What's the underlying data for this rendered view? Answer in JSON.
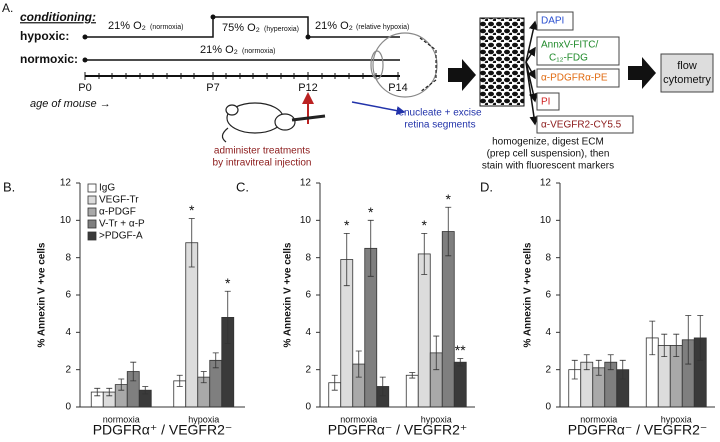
{
  "panel_a": {
    "label": "A.",
    "heading": "conditioning:",
    "rows": [
      "hypoxic:",
      "normoxic:"
    ],
    "phases": [
      {
        "o2": "21% O₂",
        "note": "(normoxia)"
      },
      {
        "o2": "75% O₂",
        "note": "(hyperoxia)"
      },
      {
        "o2": "21% O₂",
        "note": "(relative hypoxia)"
      },
      {
        "o2": "21% O₂",
        "note": "(normoxia)"
      }
    ],
    "days": [
      "P0",
      "P7",
      "P12",
      "P14"
    ],
    "age": "age of mouse →",
    "injection": [
      "administer treatments",
      "by intravitreal injection"
    ],
    "enucleate": [
      "enucleate + excise",
      "retina segments"
    ],
    "markers": [
      "DAPI",
      "AnnxV-FITC/",
      "C₁₂-FDG",
      "α-PDGFRα-PE",
      "PI",
      "α-VEGFR2-CY5.5"
    ],
    "processing": [
      "homogenize, digest ECM",
      "(prep cell suspension), then",
      "stain with fluorescent markers"
    ],
    "output": [
      "flow",
      "cytometry"
    ]
  },
  "chart_data": [
    {
      "type": "bar",
      "panel": "B.",
      "ylabel": "% Annexin V +ve cells",
      "xlabel": "PDGFRα⁺ / VEGFR2⁻",
      "categories": [
        "normoxia",
        "hypoxia"
      ],
      "ylim": [
        0,
        12
      ],
      "yticks": [
        0,
        2,
        4,
        6,
        8,
        10,
        12
      ],
      "legend": "top-left",
      "series": [
        {
          "name": "IgG",
          "color": "#ffffff",
          "values": [
            0.8,
            1.4
          ],
          "errors": [
            0.2,
            0.3
          ],
          "significance": [
            null,
            null
          ]
        },
        {
          "name": "VEGF-Tr",
          "color": "#dcdcdc",
          "values": [
            0.8,
            8.8
          ],
          "errors": [
            0.2,
            1.3
          ],
          "significance": [
            null,
            "*"
          ]
        },
        {
          "name": "α-PDGF",
          "color": "#a9a9a9",
          "values": [
            1.2,
            1.6
          ],
          "errors": [
            0.3,
            0.3
          ],
          "significance": [
            null,
            null
          ]
        },
        {
          "name": "V-Tr + α-P",
          "color": "#7f7f7f",
          "values": [
            1.9,
            2.5
          ],
          "errors": [
            0.5,
            0.4
          ],
          "significance": [
            null,
            null
          ]
        },
        {
          "name": ">PDGF-A",
          "color": "#3a3a3a",
          "values": [
            0.9,
            4.8
          ],
          "errors": [
            0.2,
            1.4
          ],
          "significance": [
            null,
            "*"
          ]
        }
      ]
    },
    {
      "type": "bar",
      "panel": "C.",
      "ylabel": "% Annexin V +ve cells",
      "xlabel": "PDGFRα⁻ / VEGFR2⁺",
      "categories": [
        "normoxia",
        "hypoxia"
      ],
      "ylim": [
        0,
        12
      ],
      "yticks": [
        0,
        2,
        4,
        6,
        8,
        10,
        12
      ],
      "series": [
        {
          "color": "#ffffff",
          "values": [
            1.3,
            1.7
          ],
          "errors": [
            0.4,
            0.15
          ],
          "significance": [
            null,
            null
          ]
        },
        {
          "color": "#dcdcdc",
          "values": [
            7.9,
            8.2
          ],
          "errors": [
            1.4,
            1.1
          ],
          "significance": [
            "*",
            "*"
          ]
        },
        {
          "color": "#a9a9a9",
          "values": [
            2.3,
            2.9
          ],
          "errors": [
            0.7,
            0.9
          ],
          "significance": [
            null,
            null
          ]
        },
        {
          "color": "#7f7f7f",
          "values": [
            8.5,
            9.4
          ],
          "errors": [
            1.5,
            1.3
          ],
          "significance": [
            "*",
            "*"
          ]
        },
        {
          "color": "#3a3a3a",
          "values": [
            1.1,
            2.4
          ],
          "errors": [
            0.5,
            0.2
          ],
          "significance": [
            null,
            "**"
          ]
        }
      ]
    },
    {
      "type": "bar",
      "panel": "D.",
      "ylabel": "% Annexin V +ve cells",
      "xlabel": "PDGFRα⁻ / VEGFR2⁻",
      "categories": [
        "normoxia",
        "hypoxia"
      ],
      "ylim": [
        0,
        12
      ],
      "yticks": [
        0,
        2,
        4,
        6,
        8,
        10,
        12
      ],
      "series": [
        {
          "color": "#ffffff",
          "values": [
            2.0,
            3.7
          ],
          "errors": [
            0.5,
            0.9
          ],
          "significance": [
            null,
            null
          ]
        },
        {
          "color": "#dcdcdc",
          "values": [
            2.4,
            3.3
          ],
          "errors": [
            0.4,
            0.6
          ],
          "significance": [
            null,
            null
          ]
        },
        {
          "color": "#a9a9a9",
          "values": [
            2.1,
            3.3
          ],
          "errors": [
            0.4,
            0.6
          ],
          "significance": [
            null,
            null
          ]
        },
        {
          "color": "#7f7f7f",
          "values": [
            2.4,
            3.6
          ],
          "errors": [
            0.4,
            1.3
          ],
          "significance": [
            null,
            null
          ]
        },
        {
          "color": "#3a3a3a",
          "values": [
            2.0,
            3.7
          ],
          "errors": [
            0.5,
            1.2
          ],
          "significance": [
            null,
            null
          ]
        }
      ]
    }
  ]
}
